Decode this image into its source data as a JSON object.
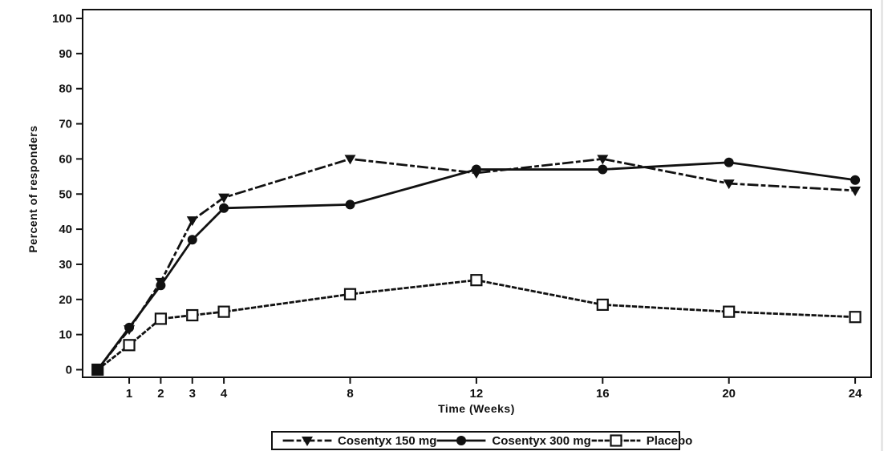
{
  "figure": {
    "background": "#ffffff",
    "ink_color": "#111111",
    "page_edge_color": "#e6e6e6"
  },
  "chart_data": {
    "type": "line",
    "title": "",
    "xlabel": "Time (Weeks)",
    "ylabel": "Percent of responders",
    "x": [
      0,
      1,
      2,
      3,
      4,
      8,
      12,
      16,
      20,
      24
    ],
    "x_ticks": [
      1,
      2,
      3,
      4,
      8,
      12,
      16,
      20,
      24
    ],
    "y_ticks": [
      0,
      10,
      20,
      30,
      40,
      50,
      60,
      70,
      80,
      90,
      100
    ],
    "xlim": [
      -0.5,
      24.8
    ],
    "ylim": [
      0,
      100
    ],
    "grid": false,
    "legend_position": "bottom",
    "series": [
      {
        "name": "Cosentyx 150 mg",
        "line_style": "dash-dot",
        "marker": "triangle-down-filled",
        "color": "#111111",
        "values": [
          0,
          11.5,
          25,
          42.5,
          49,
          60,
          56,
          60,
          53,
          51
        ]
      },
      {
        "name": "Cosentyx 300 mg",
        "line_style": "solid",
        "marker": "circle-filled",
        "color": "#111111",
        "values": [
          0,
          12,
          24,
          37,
          46,
          47,
          57,
          57,
          59,
          54
        ]
      },
      {
        "name": "Placebo",
        "line_style": "dotted",
        "marker": "square-open",
        "color": "#111111",
        "values": [
          0,
          7,
          14.5,
          15.5,
          16.5,
          21.5,
          25.5,
          18.5,
          16.5,
          15
        ]
      }
    ]
  }
}
